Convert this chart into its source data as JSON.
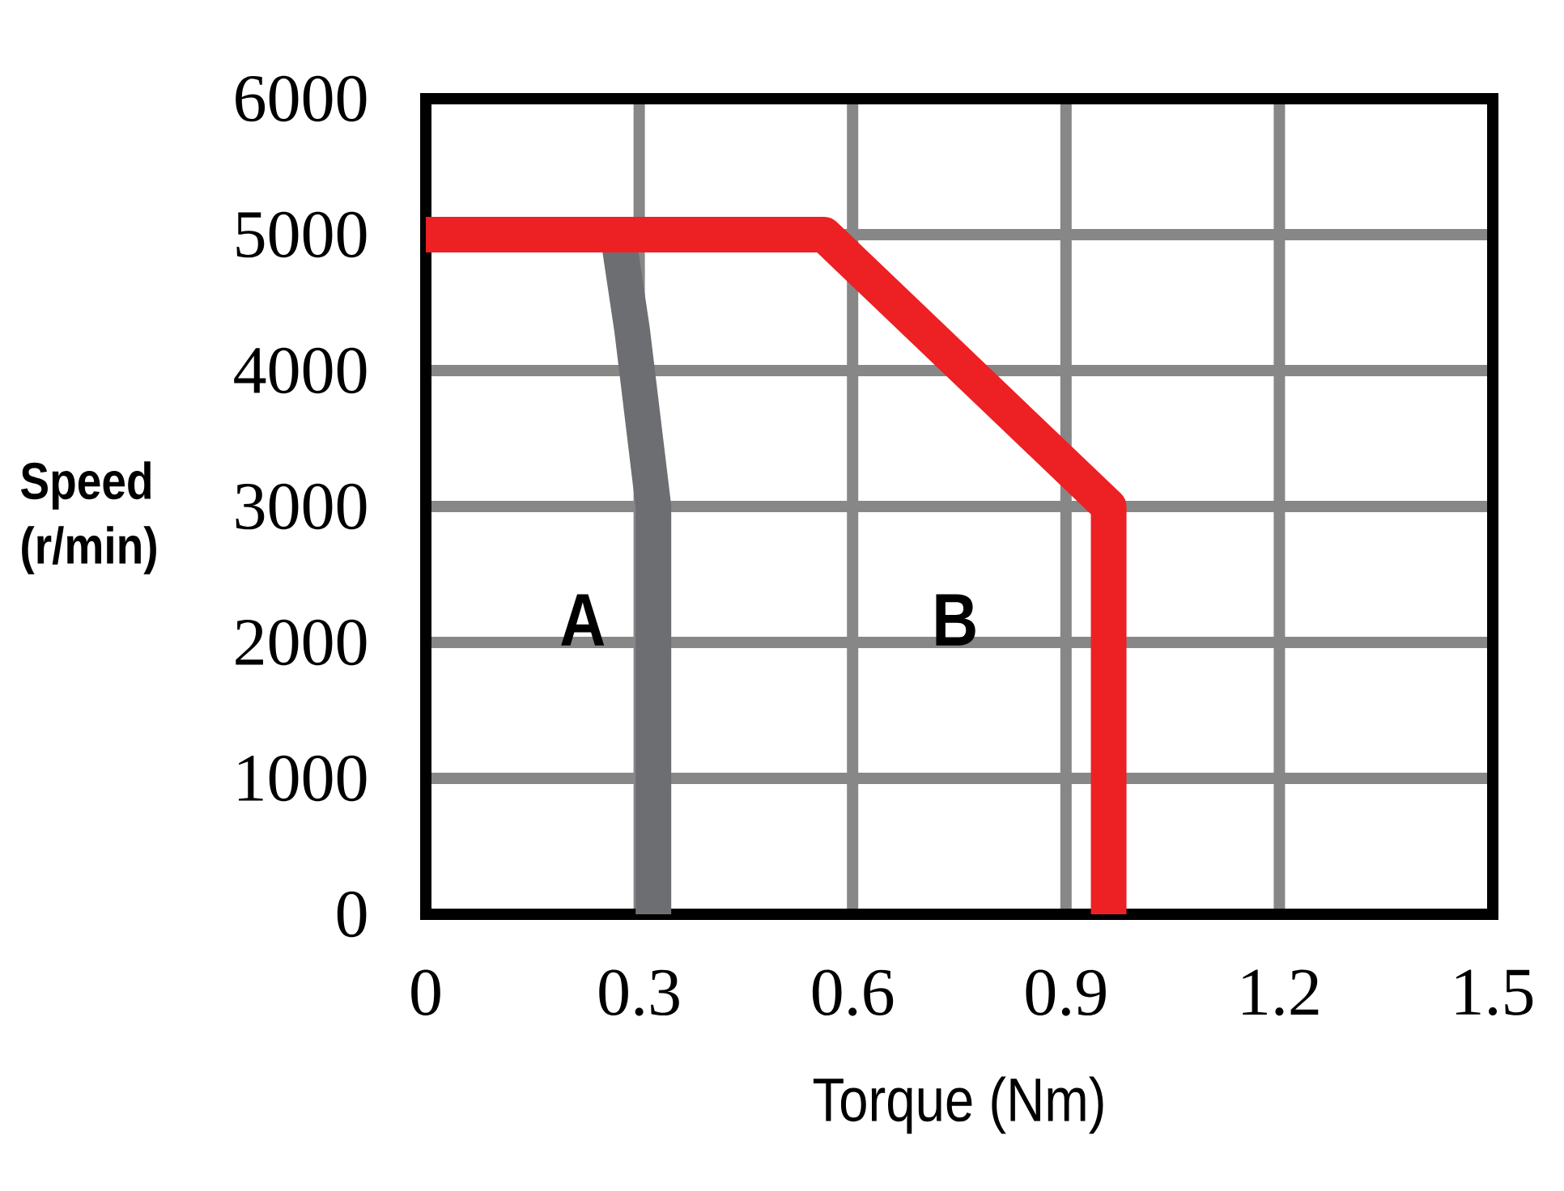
{
  "chart_data": {
    "type": "line",
    "xlabel": "Torque (Nm)",
    "ylabel": "Speed (r/min)",
    "xlim": [
      0,
      1.5
    ],
    "ylim": [
      0,
      6000
    ],
    "xticks": [
      0,
      0.3,
      0.6,
      0.9,
      1.2,
      1.5
    ],
    "yticks": [
      0,
      1000,
      2000,
      3000,
      4000,
      5000,
      6000
    ],
    "grid": true,
    "series": [
      {
        "name": "A",
        "color": "#6d6e71",
        "x": [
          0.27,
          0.29,
          0.32,
          0.32
        ],
        "values": [
          5000,
          4300,
          3000,
          0
        ]
      },
      {
        "name": "B",
        "color": "#ed2024",
        "x": [
          0,
          0.56,
          0.96,
          0.96
        ],
        "values": [
          5000,
          5000,
          3000,
          0
        ]
      }
    ]
  }
}
